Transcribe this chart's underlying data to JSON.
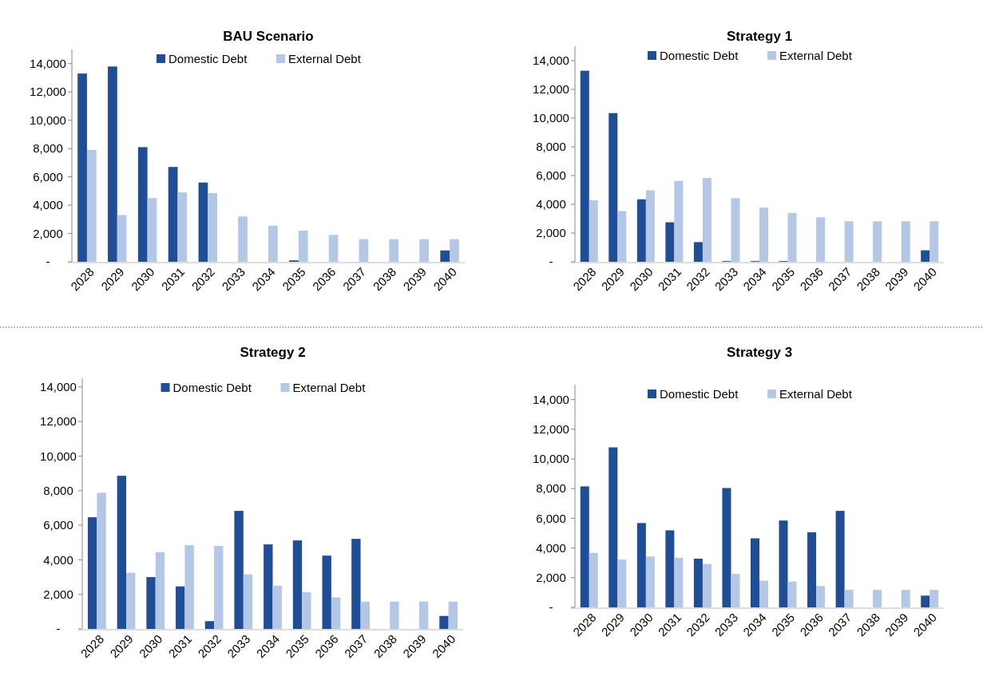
{
  "chart_data": [
    {
      "type": "bar",
      "title": "BAU Scenario",
      "categories": [
        "2028",
        "2029",
        "2030",
        "2031",
        "2032",
        "2033",
        "2034",
        "2035",
        "2036",
        "2037",
        "2038",
        "2039",
        "2040"
      ],
      "series": [
        {
          "name": "Domestic Debt",
          "color": "#1f4e96",
          "values": [
            13300,
            13800,
            8100,
            6700,
            5600,
            0,
            0,
            100,
            0,
            0,
            0,
            0,
            800
          ]
        },
        {
          "name": "External Debt",
          "color": "#b4c7e7",
          "values": [
            7900,
            3300,
            4500,
            4900,
            4850,
            3200,
            2550,
            2200,
            1900,
            1600,
            1600,
            1600,
            1600
          ]
        }
      ],
      "ylim": [
        0,
        15000
      ],
      "yticks": [
        {
          "value": 0,
          "label": "-"
        },
        {
          "value": 2000,
          "label": "2,000"
        },
        {
          "value": 4000,
          "label": "4,000"
        },
        {
          "value": 6000,
          "label": "6,000"
        },
        {
          "value": 8000,
          "label": "8,000"
        },
        {
          "value": 10000,
          "label": "10,000"
        },
        {
          "value": 12000,
          "label": "12,000"
        },
        {
          "value": 14000,
          "label": "14,000"
        }
      ],
      "grid": false,
      "legend": "top"
    },
    {
      "type": "bar",
      "title": "Strategy 1",
      "categories": [
        "2028",
        "2029",
        "2030",
        "2031",
        "2032",
        "2033",
        "2034",
        "2035",
        "2036",
        "2037",
        "2038",
        "2039",
        "2040"
      ],
      "series": [
        {
          "name": "Domestic Debt",
          "color": "#1f4e96",
          "values": [
            13300,
            10350,
            4350,
            2750,
            1370,
            50,
            50,
            50,
            0,
            0,
            0,
            0,
            800
          ]
        },
        {
          "name": "External Debt",
          "color": "#b4c7e7",
          "values": [
            4280,
            3530,
            4970,
            5630,
            5830,
            4430,
            3770,
            3390,
            3100,
            2820,
            2820,
            2820,
            2820
          ]
        }
      ],
      "ylim": [
        0,
        15000
      ],
      "yticks": [
        {
          "value": 0,
          "label": "-"
        },
        {
          "value": 2000,
          "label": "2,000"
        },
        {
          "value": 4000,
          "label": "4,000"
        },
        {
          "value": 6000,
          "label": "6,000"
        },
        {
          "value": 8000,
          "label": "8,000"
        },
        {
          "value": 10000,
          "label": "10,000"
        },
        {
          "value": 12000,
          "label": "12,000"
        },
        {
          "value": 14000,
          "label": "14,000"
        }
      ],
      "grid": false,
      "legend": "top"
    },
    {
      "type": "bar",
      "title": "Strategy 2",
      "categories": [
        "2028",
        "2029",
        "2030",
        "2031",
        "2032",
        "2033",
        "2034",
        "2035",
        "2036",
        "2037",
        "2038",
        "2039",
        "2040"
      ],
      "series": [
        {
          "name": "Domestic Debt",
          "color": "#1f4e96",
          "values": [
            6460,
            8860,
            3000,
            2460,
            450,
            6830,
            4890,
            5120,
            4240,
            5210,
            0,
            0,
            750
          ]
        },
        {
          "name": "External Debt",
          "color": "#b4c7e7",
          "values": [
            7880,
            3250,
            4440,
            4850,
            4800,
            3160,
            2500,
            2120,
            1820,
            1580,
            1580,
            1580,
            1580
          ]
        }
      ],
      "ylim": [
        0,
        14500
      ],
      "yticks": [
        {
          "value": 0,
          "label": "-"
        },
        {
          "value": 2000,
          "label": "2,000"
        },
        {
          "value": 4000,
          "label": "4,000"
        },
        {
          "value": 6000,
          "label": "6,000"
        },
        {
          "value": 8000,
          "label": "8,000"
        },
        {
          "value": 10000,
          "label": "10,000"
        },
        {
          "value": 12000,
          "label": "12,000"
        },
        {
          "value": 14000,
          "label": "14,000"
        }
      ],
      "grid": false,
      "legend": "top"
    },
    {
      "type": "bar",
      "title": "Strategy 3",
      "categories": [
        "2028",
        "2029",
        "2030",
        "2031",
        "2032",
        "2033",
        "2034",
        "2035",
        "2036",
        "2037",
        "2038",
        "2039",
        "2040"
      ],
      "series": [
        {
          "name": "Domestic Debt",
          "color": "#1f4e96",
          "values": [
            8150,
            10780,
            5680,
            5190,
            3280,
            8040,
            4650,
            5850,
            5060,
            6500,
            0,
            0,
            790
          ]
        },
        {
          "name": "External Debt",
          "color": "#b4c7e7",
          "values": [
            3670,
            3220,
            3430,
            3340,
            2920,
            2250,
            1800,
            1740,
            1440,
            1180,
            1180,
            1180,
            1180
          ]
        }
      ],
      "ylim": [
        0,
        15000
      ],
      "yticks": [
        {
          "value": 0,
          "label": "-"
        },
        {
          "value": 2000,
          "label": "2,000"
        },
        {
          "value": 4000,
          "label": "4,000"
        },
        {
          "value": 6000,
          "label": "6,000"
        },
        {
          "value": 8000,
          "label": "8,000"
        },
        {
          "value": 10000,
          "label": "10,000"
        },
        {
          "value": 12000,
          "label": "12,000"
        },
        {
          "value": 14000,
          "label": "14,000"
        }
      ],
      "grid": false,
      "legend": "top"
    }
  ]
}
